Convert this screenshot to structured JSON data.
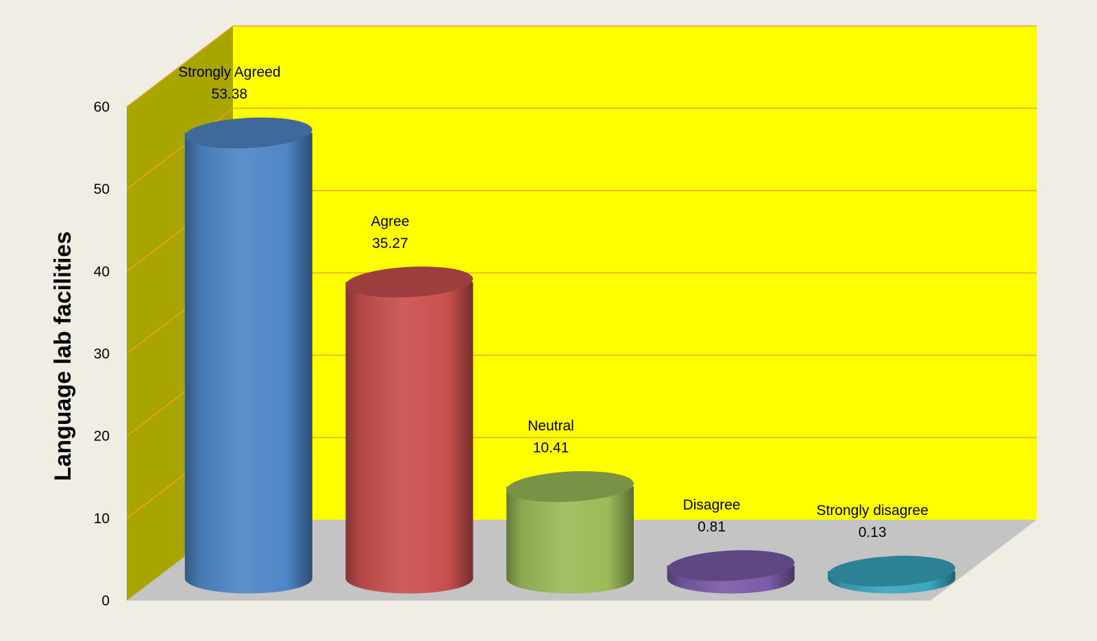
{
  "chart_data": {
    "type": "bar",
    "style": "3d-cylinder",
    "ylabel": "Language lab facilities",
    "xlabel": "",
    "ylim": [
      0,
      60
    ],
    "yticks": [
      0,
      10,
      20,
      30,
      40,
      50,
      60
    ],
    "grid": true,
    "legend": "none",
    "categories": [
      "Strongly Agreed",
      "Agree",
      "Neutral",
      "Disagree",
      "Strongly disagree"
    ],
    "values": [
      53.38,
      35.27,
      10.41,
      0.81,
      0.13
    ],
    "value_labels": [
      "53.38",
      "35.27",
      "10.41",
      "0.81",
      "0.13"
    ],
    "colors": {
      "back_wall": "#ffff00",
      "side_wall": "#a8a400",
      "floor": "#c4c4c4",
      "gridlines": "#f0a030",
      "background": "#efede4",
      "bars": [
        "#4f86c6",
        "#c9504f",
        "#9bbb59",
        "#7a5ba8",
        "#3aa6bf"
      ]
    }
  }
}
